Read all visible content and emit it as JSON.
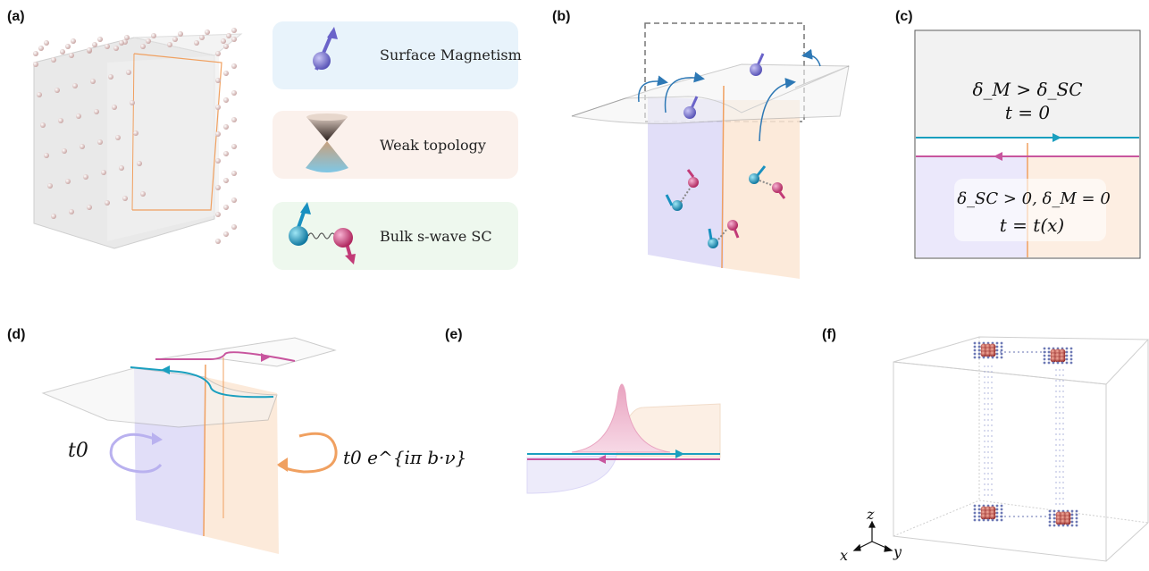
{
  "panels": {
    "a": "(a)",
    "b": "(b)",
    "c": "(c)",
    "d": "(d)",
    "e": "(e)",
    "f": "(f)"
  },
  "legend": {
    "surface": "Surface Magnetism",
    "weak": "Weak topology",
    "bulk": "Bulk s-wave SC"
  },
  "panel_c": {
    "top_line1": "δ_M > δ_SC",
    "top_line2": "t = 0",
    "bottom_line1": "δ_SC > 0, δ_M = 0",
    "bottom_line2": "t = t(x)"
  },
  "panel_d": {
    "left_hopping": "t0",
    "right_hopping": "t0 e^{iπ b·ν}"
  },
  "axes": {
    "z": "z",
    "x": "x",
    "y": "y"
  },
  "colors": {
    "blue_line": "#1a9fbf",
    "magenta_line": "#c8559e",
    "orange_line": "#f0a060",
    "purple_region": "#dcd8f7",
    "orange_region": "#fbe6d3"
  }
}
